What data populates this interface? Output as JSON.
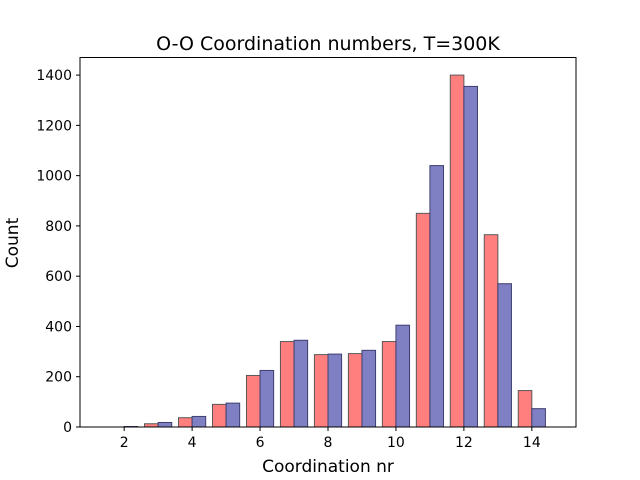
{
  "chart_data": {
    "type": "bar",
    "title": "O-O Coordination numbers, T=300K",
    "xlabel": "Coordination nr",
    "ylabel": "Count",
    "xlim": [
      0.7,
      15.3
    ],
    "ylim": [
      0,
      1470
    ],
    "xticks": [
      2,
      4,
      6,
      8,
      10,
      12,
      14
    ],
    "yticks": [
      0,
      200,
      400,
      600,
      800,
      1000,
      1200,
      1400
    ],
    "grid": false,
    "legend": "none",
    "bin_centers": [
      1,
      2,
      3,
      4,
      5,
      6,
      7,
      8,
      9,
      10,
      11,
      12,
      13,
      14
    ],
    "series": [
      {
        "color": "#ff7f7f",
        "edgecolor": "#595959",
        "values": [
          0,
          0,
          13,
          37,
          90,
          205,
          340,
          288,
          292,
          340,
          850,
          1400,
          765,
          145
        ]
      },
      {
        "color": "#7f7fc4",
        "edgecolor": "#3f3f6f",
        "values": [
          0,
          2,
          18,
          42,
          95,
          225,
          345,
          290,
          305,
          405,
          1040,
          1355,
          570,
          73
        ]
      }
    ]
  }
}
